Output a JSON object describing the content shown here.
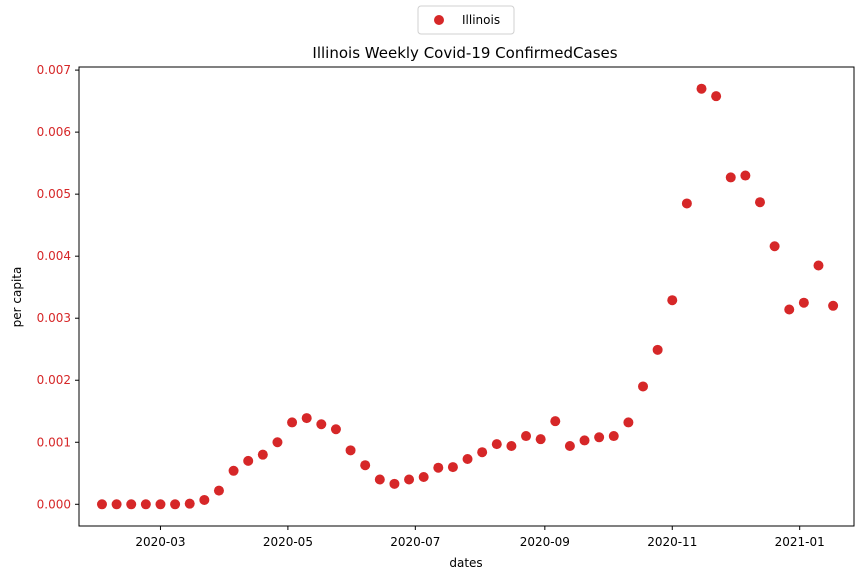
{
  "chart_data": {
    "type": "scatter",
    "title": "Illinois Weekly Covid-19 ConfirmedCases",
    "xlabel": "dates",
    "ylabel": "per capita",
    "x_axis_type": "date",
    "xlim": [
      "2020-01-22",
      "2021-01-27"
    ],
    "ylim": [
      -0.00035,
      0.00705
    ],
    "x_ticks": [
      "2020-03-01",
      "2020-05-01",
      "2020-07-01",
      "2020-09-01",
      "2020-11-01",
      "2021-01-01"
    ],
    "x_tick_labels": [
      "2020-03",
      "2020-05",
      "2020-07",
      "2020-09",
      "2020-11",
      "2021-01"
    ],
    "y_ticks": [
      0,
      0.001,
      0.002,
      0.003,
      0.004,
      0.005,
      0.006,
      0.007
    ],
    "y_tick_labels": [
      "0.000",
      "0.001",
      "0.002",
      "0.003",
      "0.004",
      "0.005",
      "0.006",
      "0.007"
    ],
    "y_tick_label_color": "#d62728",
    "grid": false,
    "legend": {
      "position": "top-center-outside",
      "entries": [
        "Illinois"
      ]
    },
    "series": [
      {
        "name": "Illinois",
        "color": "#d62728",
        "marker": "circle",
        "x": [
          "2020-02-02",
          "2020-02-09",
          "2020-02-16",
          "2020-02-23",
          "2020-03-01",
          "2020-03-08",
          "2020-03-15",
          "2020-03-22",
          "2020-03-29",
          "2020-04-05",
          "2020-04-12",
          "2020-04-19",
          "2020-04-26",
          "2020-05-03",
          "2020-05-10",
          "2020-05-17",
          "2020-05-24",
          "2020-05-31",
          "2020-06-07",
          "2020-06-14",
          "2020-06-21",
          "2020-06-28",
          "2020-07-05",
          "2020-07-12",
          "2020-07-19",
          "2020-07-26",
          "2020-08-02",
          "2020-08-09",
          "2020-08-16",
          "2020-08-23",
          "2020-08-30",
          "2020-09-06",
          "2020-09-13",
          "2020-09-20",
          "2020-09-27",
          "2020-10-04",
          "2020-10-11",
          "2020-10-18",
          "2020-10-25",
          "2020-11-01",
          "2020-11-08",
          "2020-11-15",
          "2020-11-22",
          "2020-11-29",
          "2020-12-06",
          "2020-12-13",
          "2020-12-20",
          "2020-12-27",
          "2021-01-03",
          "2021-01-10",
          "2021-01-17"
        ],
        "y": [
          0.0,
          0.0,
          0.0,
          0.0,
          0.0,
          0.0,
          1e-05,
          7e-05,
          0.00022,
          0.00054,
          0.0007,
          0.0008,
          0.001,
          0.00132,
          0.00139,
          0.00129,
          0.00121,
          0.00087,
          0.00063,
          0.0004,
          0.00033,
          0.0004,
          0.00044,
          0.00059,
          0.0006,
          0.00073,
          0.00084,
          0.00097,
          0.00094,
          0.0011,
          0.00105,
          0.00134,
          0.00094,
          0.00103,
          0.00108,
          0.0011,
          0.00132,
          0.0019,
          0.00249,
          0.00329,
          0.00485,
          0.0067,
          0.00658,
          0.00527,
          0.0053,
          0.00487,
          0.00416,
          0.00314,
          0.00325,
          0.00385,
          0.0032
        ]
      }
    ]
  }
}
